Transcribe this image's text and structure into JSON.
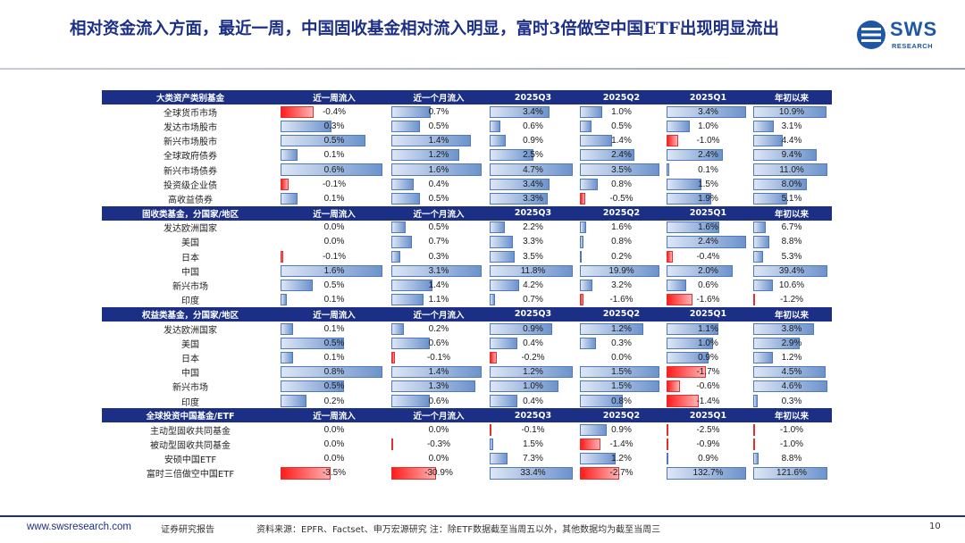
{
  "header": {
    "title": "相对资金流入方面，最近一周，中国固收基金相对流入明显，富时3倍做空中国ETF出现明显流出",
    "logo_text": "SWS",
    "logo_sub": "RESEARCH"
  },
  "colors": {
    "navy": "#1c2f86",
    "red": "#e00000",
    "accent": "#c00000"
  },
  "table": {
    "sections": [
      {
        "header": [
          "大类资产类别基金",
          "近一周流入",
          "近一个月流入",
          "2025Q3",
          "2025Q2",
          "2025Q1",
          "年初以来"
        ],
        "rows": [
          {
            "label": "全球货币市场",
            "values": [
              "-0.4%",
              "0.7%",
              "3.4%",
              "1.0%",
              "3.4%",
              "10.9%"
            ]
          },
          {
            "label": "发达市场股市",
            "values": [
              "0.3%",
              "0.5%",
              "0.6%",
              "0.5%",
              "1.0%",
              "3.1%"
            ]
          },
          {
            "label": "新兴市场股市",
            "values": [
              "0.5%",
              "1.4%",
              "0.9%",
              "1.4%",
              "-1.0%",
              "4.4%"
            ]
          },
          {
            "label": "全球政府债券",
            "values": [
              "0.1%",
              "1.2%",
              "2.5%",
              "2.4%",
              "2.4%",
              "9.4%"
            ]
          },
          {
            "label": "新兴市场债券",
            "values": [
              "0.6%",
              "1.6%",
              "4.7%",
              "3.5%",
              "0.1%",
              "11.0%"
            ]
          },
          {
            "label": "投资级企业债",
            "values": [
              "-0.1%",
              "0.4%",
              "3.4%",
              "0.8%",
              "1.5%",
              "8.0%"
            ]
          },
          {
            "label": "高收益债券",
            "values": [
              "0.1%",
              "0.5%",
              "3.3%",
              "-0.5%",
              "1.9%",
              "5.1%"
            ]
          }
        ]
      },
      {
        "header": [
          "固收类基金，分国家/地区",
          "近一周流入",
          "近一个月流入",
          "2025Q3",
          "2025Q2",
          "2025Q1",
          "年初以来"
        ],
        "rows": [
          {
            "label": "发达欧洲国家",
            "values": [
              "0.0%",
              "0.5%",
              "2.2%",
              "1.6%",
              "1.6%",
              "6.7%"
            ]
          },
          {
            "label": "美国",
            "values": [
              "0.0%",
              "0.7%",
              "3.3%",
              "0.8%",
              "2.4%",
              "8.8%"
            ]
          },
          {
            "label": "日本",
            "values": [
              "-0.1%",
              "0.3%",
              "3.5%",
              "0.2%",
              "-0.4%",
              "5.3%"
            ]
          },
          {
            "label": "中国",
            "values": [
              "1.6%",
              "3.1%",
              "11.8%",
              "19.9%",
              "2.0%",
              "39.4%"
            ]
          },
          {
            "label": "新兴市场",
            "values": [
              "0.5%",
              "1.4%",
              "4.2%",
              "3.2%",
              "0.6%",
              "10.6%"
            ]
          },
          {
            "label": "印度",
            "values": [
              "0.1%",
              "1.1%",
              "0.7%",
              "-1.6%",
              "-1.6%",
              "-1.2%"
            ]
          }
        ]
      },
      {
        "header": [
          "权益类基金，分国家/地区",
          "近一周流入",
          "近一个月流入",
          "2025Q3",
          "2025Q2",
          "2025Q1",
          "年初以来"
        ],
        "rows": [
          {
            "label": "发达欧洲国家",
            "values": [
              "0.1%",
              "0.2%",
              "0.9%",
              "1.2%",
              "1.1%",
              "3.8%"
            ]
          },
          {
            "label": "美国",
            "values": [
              "0.5%",
              "0.6%",
              "0.4%",
              "0.3%",
              "1.0%",
              "2.9%"
            ]
          },
          {
            "label": "日本",
            "values": [
              "0.1%",
              "-0.1%",
              "-0.2%",
              "0.0%",
              "0.9%",
              "1.2%"
            ]
          },
          {
            "label": "中国",
            "values": [
              "0.8%",
              "1.4%",
              "1.2%",
              "1.5%",
              "-1.7%",
              "4.5%"
            ]
          },
          {
            "label": "新兴市场",
            "values": [
              "0.5%",
              "1.3%",
              "1.0%",
              "1.5%",
              "-0.6%",
              "4.6%"
            ]
          },
          {
            "label": "印度",
            "values": [
              "0.2%",
              "0.6%",
              "0.4%",
              "0.8%",
              "-1.4%",
              "0.3%"
            ]
          }
        ]
      },
      {
        "header": [
          "全球投资中国基金/ETF",
          "近一周流入",
          "近一个月流入",
          "2025Q3",
          "2025Q2",
          "2025Q1",
          "年初以来"
        ],
        "rows": [
          {
            "label": "主动型固收共同基金",
            "values": [
              "0.0%",
              "0.0%",
              "-0.1%",
              "0.9%",
              "-2.5%",
              "-1.0%"
            ]
          },
          {
            "label": "被动型固收共同基金",
            "values": [
              "0.0%",
              "-0.3%",
              "1.5%",
              "-1.4%",
              "-0.9%",
              "-1.0%"
            ]
          },
          {
            "label": "安硕中国ETF",
            "values": [
              "0.0%",
              "0.0%",
              "7.3%",
              "1.2%",
              "0.9%",
              "8.8%"
            ]
          },
          {
            "label": "富时三倍做空中国ETF",
            "values": [
              "-3.5%",
              "-30.9%",
              "33.4%",
              "-2.7%",
              "132.7%",
              "121.6%"
            ]
          }
        ]
      }
    ]
  },
  "footer": {
    "site": "www.swsresearch.com",
    "report_type": "证券研究报告",
    "source": "资料来源：EPFR、Factset、申万宏源研究 注：除ETF数据截至当周五以外，其他数据均为截至当周三",
    "page": "10"
  }
}
